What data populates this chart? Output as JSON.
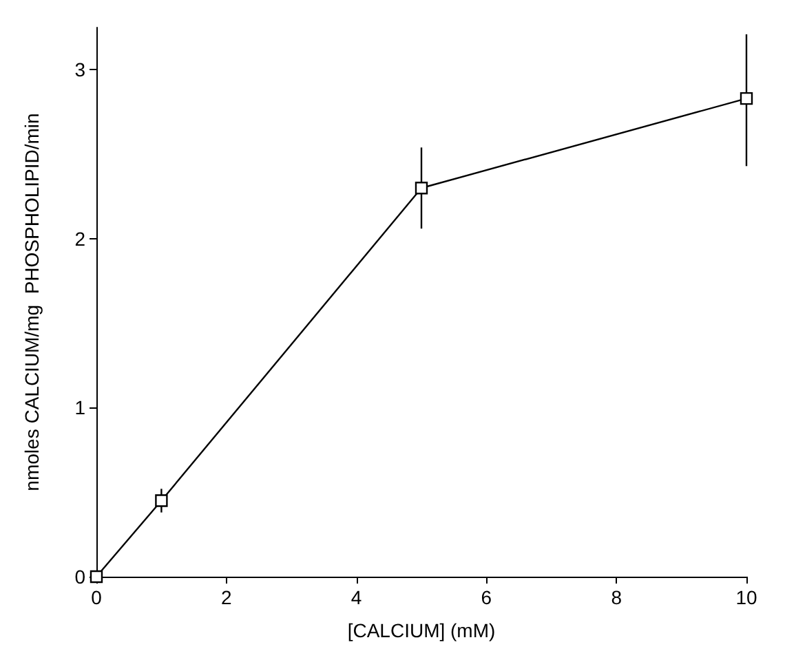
{
  "chart_data": {
    "type": "line",
    "xlabel": "[CALCIUM] (mM)",
    "ylabel": "nmoles CALCIUM/mg  PHOSPHOLIPID/min",
    "x": [
      0,
      1,
      5,
      10
    ],
    "series": [
      {
        "color": "#000000",
        "values": [
          0,
          0.45,
          2.3,
          2.83
        ],
        "errors": [
          null,
          [
            0.38,
            0.52
          ],
          [
            2.06,
            2.54
          ],
          [
            2.43,
            3.21
          ]
        ]
      }
    ],
    "xlim": [
      0,
      10
    ],
    "xticks": [
      0,
      2,
      4,
      6,
      8,
      10
    ],
    "ylim": [
      0,
      3.25
    ],
    "yticks": [
      0,
      1,
      2,
      3
    ],
    "grid": false,
    "marker": "square",
    "line_style": "solid"
  }
}
